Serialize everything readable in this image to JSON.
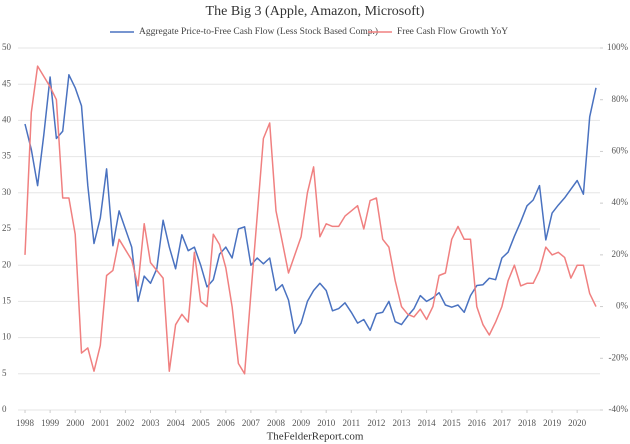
{
  "chart_data": {
    "type": "line",
    "title": "The Big 3 (Apple, Amazon, Microsoft)",
    "source": "TheFelderReport.com",
    "x": [
      1998,
      1998.25,
      1998.5,
      1998.75,
      1999,
      1999.25,
      1999.5,
      1999.75,
      2000,
      2000.25,
      2000.5,
      2000.75,
      2001,
      2001.25,
      2001.5,
      2001.75,
      2002,
      2002.25,
      2002.5,
      2002.75,
      2003,
      2003.25,
      2003.5,
      2003.75,
      2004,
      2004.25,
      2004.5,
      2004.75,
      2005,
      2005.25,
      2005.5,
      2005.75,
      2006,
      2006.25,
      2006.5,
      2006.75,
      2007,
      2007.25,
      2007.5,
      2007.75,
      2008,
      2008.25,
      2008.5,
      2008.75,
      2009,
      2009.25,
      2009.5,
      2009.75,
      2010,
      2010.25,
      2010.5,
      2010.75,
      2011,
      2011.25,
      2011.5,
      2011.75,
      2012,
      2012.25,
      2012.5,
      2012.75,
      2013,
      2013.25,
      2013.5,
      2013.75,
      2014,
      2014.25,
      2014.5,
      2014.75,
      2015,
      2015.25,
      2015.5,
      2015.75,
      2016,
      2016.25,
      2016.5,
      2016.75,
      2017,
      2017.25,
      2017.5,
      2017.75,
      2018,
      2018.25,
      2018.5,
      2018.75,
      2019,
      2019.25,
      2019.5,
      2019.75,
      2020,
      2020.25,
      2020.5,
      2020.75
    ],
    "xlim": [
      1997.72,
      2020.91
    ],
    "xticks": [
      1998,
      1999,
      2000,
      2001,
      2002,
      2003,
      2004,
      2005,
      2006,
      2007,
      2008,
      2009,
      2010,
      2011,
      2012,
      2013,
      2014,
      2015,
      2016,
      2017,
      2018,
      2019,
      2020
    ],
    "ylim": [
      0,
      50
    ],
    "yticks": [
      0,
      5,
      10,
      15,
      20,
      25,
      30,
      35,
      40,
      45,
      50
    ],
    "y2lim": [
      -40,
      100
    ],
    "y2ticks": [
      {
        "value": -40,
        "label": "-40%"
      },
      {
        "value": -20,
        "label": "-20%"
      },
      {
        "value": 0,
        "label": "0%"
      },
      {
        "value": 20,
        "label": "20%"
      },
      {
        "value": 40,
        "label": "40%"
      },
      {
        "value": 60,
        "label": "60%"
      },
      {
        "value": 80,
        "label": "80%"
      },
      {
        "value": 100,
        "label": "100%"
      }
    ],
    "grid": true,
    "legend": "top",
    "series": [
      {
        "name": "Aggregate Price-to-Free Cash Flow (Less Stock Based Comp.)",
        "color": "#4a72c0",
        "values": [
          39.5,
          36,
          31,
          38,
          46,
          37.5,
          38.5,
          46.3,
          44.5,
          42,
          31,
          23,
          26.5,
          33.3,
          22.7,
          27.5,
          25,
          22.5,
          15,
          18.5,
          17.5,
          19.5,
          26.2,
          22.5,
          19.5,
          24.2,
          22,
          22.5,
          20,
          17,
          18,
          21.5,
          22.5,
          21,
          25,
          25.3,
          20,
          21,
          20.2,
          21,
          16.5,
          17.3,
          15.2,
          10.6,
          12,
          15,
          16.5,
          17.5,
          16.5,
          13.7,
          14,
          14.8,
          13.5,
          12,
          12.5,
          11,
          13.3,
          13.5,
          15,
          12.2,
          11.8,
          13,
          14,
          15.8,
          15,
          15.5,
          16.2,
          14.5,
          14.2,
          14.5,
          13.5,
          15.8,
          17.2,
          17.3,
          18.2,
          18,
          21,
          21.8,
          24,
          26,
          28.2,
          29,
          31,
          23.5,
          27.2,
          28.3,
          29.3,
          30.5,
          31.7,
          29.8,
          40.5,
          44.5
        ]
      },
      {
        "name": "Free Cash Flow Growth YoY",
        "color": "#f08080",
        "axis": "y2",
        "values": [
          20,
          75,
          93,
          89,
          85,
          80,
          42,
          42,
          28,
          -18,
          -16,
          -25,
          -15,
          12,
          14,
          26,
          22,
          18,
          8,
          32,
          17,
          14,
          11,
          -25,
          -7,
          -3,
          -6,
          21,
          2,
          0,
          28,
          24,
          15,
          0,
          -22,
          -26,
          5,
          35,
          65,
          71,
          37,
          25,
          13,
          20,
          27,
          44,
          54,
          27,
          32,
          31,
          31,
          35,
          37,
          39,
          30,
          41,
          42,
          26,
          23,
          10,
          0,
          -3,
          -4,
          -1,
          -5,
          0,
          12,
          13,
          26,
          31,
          26,
          26,
          0,
          -7,
          -11,
          -6,
          0,
          10,
          16,
          8,
          9,
          9,
          14,
          23,
          20,
          21,
          19,
          11,
          16,
          16,
          5,
          0
        ]
      }
    ]
  }
}
